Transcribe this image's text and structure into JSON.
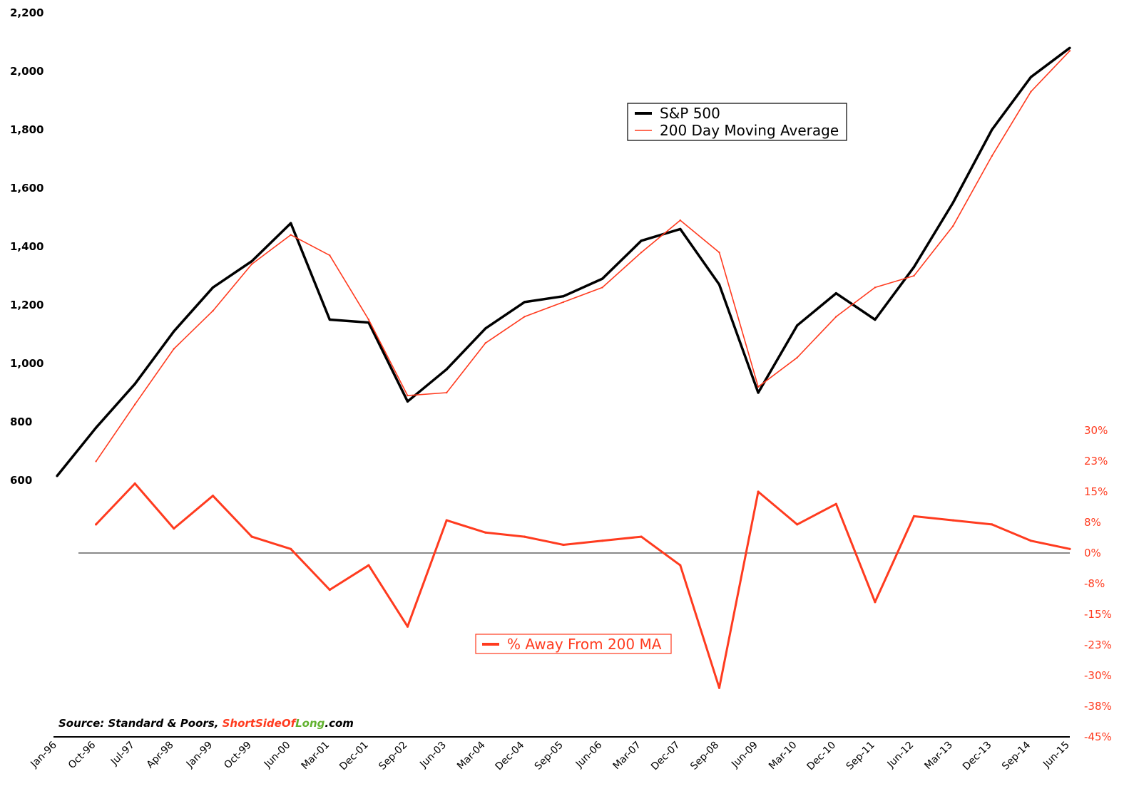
{
  "colors": {
    "price": "#000000",
    "ma": "#ff3b1f",
    "pct": "#ff3b1f",
    "zero": "#444444"
  },
  "source": {
    "prefix": "Source: Standard & Poors, ",
    "site_part1": "Short",
    "site_part2": "SideOf",
    "site_part3": "Long",
    "site_part4": ".com"
  },
  "chart_data": {
    "type": "line",
    "title": "",
    "x": [
      "Jan-96",
      "Oct-96",
      "Jul-97",
      "Apr-98",
      "Jan-99",
      "Oct-99",
      "Jun-00",
      "Mar-01",
      "Dec-01",
      "Sep-02",
      "Jun-03",
      "Mar-04",
      "Dec-04",
      "Sep-05",
      "Jun-06",
      "Mar-07",
      "Dec-07",
      "Sep-08",
      "Jun-09",
      "Mar-10",
      "Dec-10",
      "Sep-11",
      "Jun-12",
      "Mar-13",
      "Dec-13",
      "Sep-14",
      "Jun-15"
    ],
    "x_tick_labels": [
      "Jan-96",
      "Oct-96",
      "Jul-97",
      "Apr-98",
      "Jan-99",
      "Oct-99",
      "Jun-00",
      "Mar-01",
      "Dec-01",
      "Sep-02",
      "Jun-03",
      "Mar-04",
      "Dec-04",
      "Sep-05",
      "Jun-06",
      "Mar-07",
      "Dec-07",
      "Sep-08",
      "Jun-09",
      "Mar-10",
      "Dec-10",
      "Sep-11",
      "Jun-12",
      "Mar-13",
      "Dec-13",
      "Sep-14",
      "Jun-15"
    ],
    "y_left_ticks": [
      "600",
      "800",
      "1,000",
      "1,200",
      "1,400",
      "1,600",
      "1,800",
      "2,000",
      "2,200"
    ],
    "y_left_tick_values": [
      600,
      800,
      1000,
      1200,
      1400,
      1600,
      1800,
      2000,
      2200
    ],
    "ylim_left": [
      600,
      2200
    ],
    "y_right_ticks": [
      "30%",
      "23%",
      "15%",
      "8%",
      "0%",
      "-8%",
      "-15%",
      "-23%",
      "-30%",
      "-38%",
      "-45%"
    ],
    "y_right_tick_values": [
      30,
      22.5,
      15,
      7.5,
      0,
      -7.5,
      -15,
      -22.5,
      -30,
      -37.5,
      -45
    ],
    "ylim_right": [
      -45,
      30
    ],
    "series": [
      {
        "name": "S&P 500",
        "axis": "left",
        "values": [
          615,
          780,
          930,
          1110,
          1260,
          1350,
          1480,
          1150,
          1140,
          870,
          980,
          1120,
          1210,
          1230,
          1290,
          1420,
          1460,
          1270,
          900,
          1130,
          1240,
          1150,
          1330,
          1550,
          1800,
          1980,
          2080
        ]
      },
      {
        "name": "200 Day Moving Average",
        "axis": "left",
        "values": [
          null,
          665,
          860,
          1050,
          1180,
          1340,
          1440,
          1370,
          1150,
          890,
          900,
          1070,
          1160,
          1210,
          1260,
          1380,
          1490,
          1380,
          920,
          1020,
          1160,
          1260,
          1300,
          1470,
          1710,
          1930,
          2070
        ]
      },
      {
        "name": "% Away From 200 MA",
        "axis": "right",
        "values": [
          null,
          7,
          17,
          6,
          14,
          4,
          1,
          -9,
          -3,
          -18,
          8,
          5,
          4,
          2,
          3,
          4,
          -3,
          -33,
          15,
          7,
          12,
          -12,
          9,
          8,
          7,
          3,
          1
        ]
      }
    ],
    "legend_top": [
      "S&P 500",
      "200 Day Moving Average"
    ],
    "legend_bottom": [
      "% Away From 200 MA"
    ],
    "grid": false
  }
}
